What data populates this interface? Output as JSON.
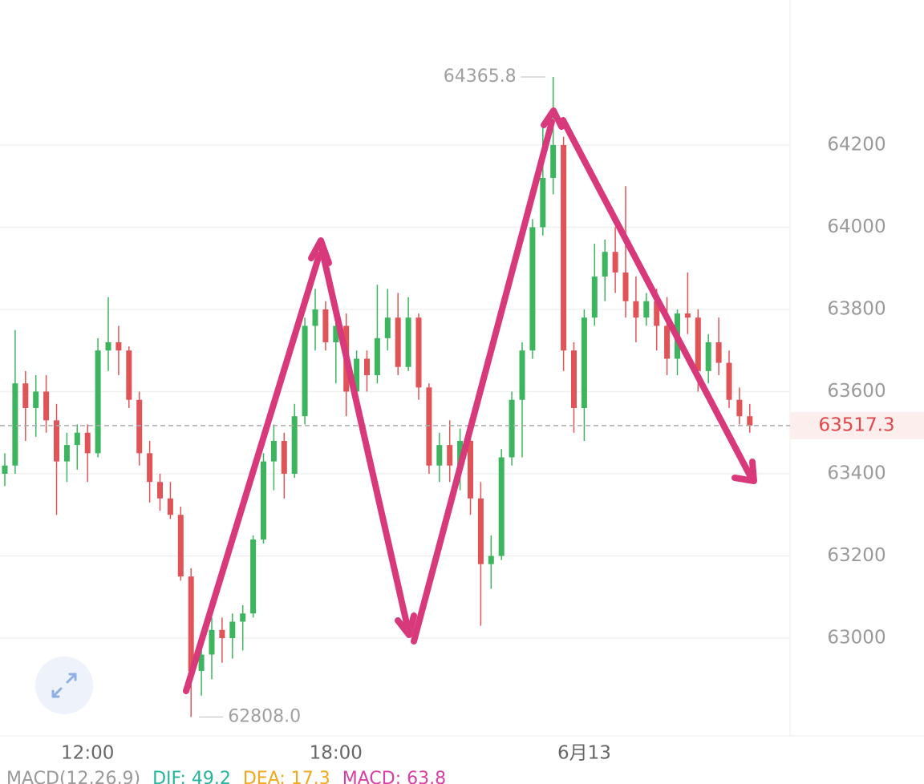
{
  "chart_data": {
    "type": "candlestick",
    "categories": [
      null,
      null,
      null,
      null,
      null,
      null,
      null,
      null,
      "12:00",
      null,
      null,
      null,
      null,
      null,
      null,
      null,
      null,
      null,
      null,
      null,
      null,
      null,
      null,
      null,
      null,
      null,
      null,
      null,
      null,
      null,
      null,
      null,
      "18:00",
      null,
      null,
      null,
      null,
      null,
      null,
      null,
      null,
      null,
      null,
      null,
      null,
      null,
      null,
      null,
      null,
      null,
      null,
      null,
      null,
      null,
      null,
      null,
      "6月13",
      null,
      null,
      null,
      null,
      null,
      null,
      null,
      null,
      null,
      null,
      null,
      null,
      null,
      null,
      null,
      null
    ],
    "open": [
      63400,
      63420,
      63620,
      63560,
      63600,
      63530,
      63430,
      63470,
      63500,
      63450,
      63700,
      63720,
      63700,
      63580,
      63450,
      63380,
      63340,
      63300,
      63150,
      62920,
      62960,
      63020,
      63000,
      63040,
      63060,
      63240,
      63430,
      63480,
      63400,
      63540,
      63760,
      63800,
      63720,
      63760,
      63600,
      63680,
      63640,
      63730,
      63780,
      63660,
      63780,
      63610,
      63420,
      63470,
      63420,
      63480,
      63340,
      63180,
      63200,
      63440,
      63580,
      63700,
      64000,
      64120,
      64200,
      63700,
      63560,
      63780,
      63880,
      63940,
      63890,
      63820,
      63780,
      63820,
      63760,
      63680,
      63790,
      63780,
      63650,
      63720,
      63670,
      63580,
      63540
    ],
    "high": [
      63450,
      63750,
      63650,
      63640,
      63640,
      63570,
      63500,
      63520,
      63520,
      63730,
      63830,
      63760,
      63710,
      63600,
      63480,
      63400,
      63380,
      63320,
      63170,
      63000,
      63050,
      63050,
      63060,
      63080,
      63250,
      63450,
      63520,
      63500,
      63570,
      63780,
      63850,
      63820,
      63800,
      63790,
      63700,
      63700,
      63860,
      63850,
      63840,
      63830,
      63790,
      63620,
      63500,
      63530,
      63510,
      63500,
      63380,
      63250,
      63460,
      63600,
      63720,
      64020,
      64250,
      64365.8,
      64220,
      63720,
      63800,
      63960,
      63970,
      64000,
      64100,
      63880,
      63840,
      63850,
      63830,
      63800,
      63890,
      63800,
      63740,
      63780,
      63700,
      63610,
      63570
    ],
    "low": [
      63370,
      63400,
      63480,
      63490,
      63500,
      63300,
      63380,
      63410,
      63380,
      63440,
      63650,
      63640,
      63560,
      63420,
      63330,
      63310,
      63290,
      63140,
      62808,
      62860,
      62900,
      62940,
      62950,
      62970,
      63050,
      63230,
      63360,
      63340,
      63390,
      63520,
      63700,
      63700,
      63620,
      63540,
      63580,
      63600,
      63620,
      63700,
      63640,
      63650,
      63580,
      63400,
      63380,
      63380,
      63360,
      63300,
      63030,
      63120,
      63190,
      63420,
      63440,
      63680,
      63980,
      64080,
      63650,
      63500,
      63480,
      63760,
      63820,
      63840,
      63780,
      63720,
      63760,
      63700,
      63640,
      63640,
      63740,
      63600,
      63620,
      63640,
      63560,
      63520,
      63500
    ],
    "close": [
      63420,
      63620,
      63560,
      63600,
      63530,
      63430,
      63470,
      63500,
      63450,
      63700,
      63720,
      63700,
      63580,
      63450,
      63380,
      63340,
      63300,
      63150,
      62920,
      62960,
      63020,
      63000,
      63040,
      63060,
      63240,
      63430,
      63480,
      63400,
      63540,
      63760,
      63800,
      63720,
      63760,
      63600,
      63680,
      63640,
      63730,
      63780,
      63660,
      63780,
      63610,
      63420,
      63470,
      63420,
      63480,
      63340,
      63180,
      63200,
      63440,
      63580,
      63700,
      64000,
      64120,
      64200,
      63700,
      63560,
      63780,
      63880,
      63940,
      63890,
      63820,
      63780,
      63820,
      63760,
      63680,
      63790,
      63780,
      63650,
      63720,
      63670,
      63580,
      63540,
      63517.3
    ],
    "up_color": "#3cb55e",
    "down_color": "#e05458",
    "ylim": [
      62762,
      64553
    ],
    "yticks": [
      63000,
      63200,
      63400,
      63600,
      63800,
      64000,
      64200
    ],
    "grid": true,
    "max_label": 64365.8,
    "min_label": {
      "value": 62808.0,
      "label": "62808.0"
    },
    "last_price": 63517.3,
    "indicator": {
      "name": "MACD(12,26,9)",
      "dif": "DIF: 49.2",
      "dea": "DEA: 17.3",
      "macd": "MACD: 63.8"
    }
  }
}
